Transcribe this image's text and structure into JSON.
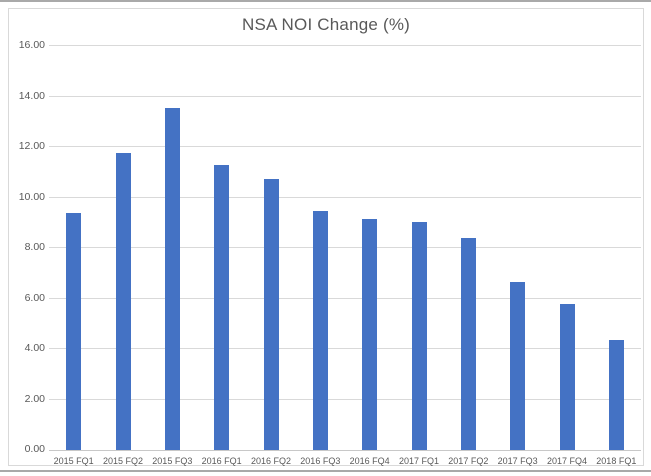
{
  "chart_data": {
    "type": "bar",
    "title": "NSA NOI Change (%)",
    "categories": [
      "2015 FQ1",
      "2015 FQ2",
      "2015 FQ3",
      "2016 FQ1",
      "2016 FQ2",
      "2016 FQ3",
      "2016 FQ4",
      "2017 FQ1",
      "2017 FQ2",
      "2017 FQ3",
      "2017 FQ4",
      "2018 FQ1"
    ],
    "values": [
      9.4,
      11.75,
      13.55,
      11.3,
      10.75,
      9.45,
      9.15,
      9.05,
      8.4,
      6.65,
      5.8,
      4.35
    ],
    "xlabel": "",
    "ylabel": "",
    "ylim": [
      0,
      16
    ],
    "ytick_labels": [
      "0.00",
      "2.00",
      "4.00",
      "6.00",
      "8.00",
      "10.00",
      "12.00",
      "14.00",
      "16.00"
    ],
    "grid": true,
    "legend": "none"
  },
  "colors": {
    "bar": "#4472c4",
    "gridline": "#d9d9d9",
    "axis_line": "#c8c8c8",
    "text": "#595959",
    "chart_border": "#d9d9d9",
    "background": "#ffffff",
    "outer_rule": "#a9a9a9"
  }
}
